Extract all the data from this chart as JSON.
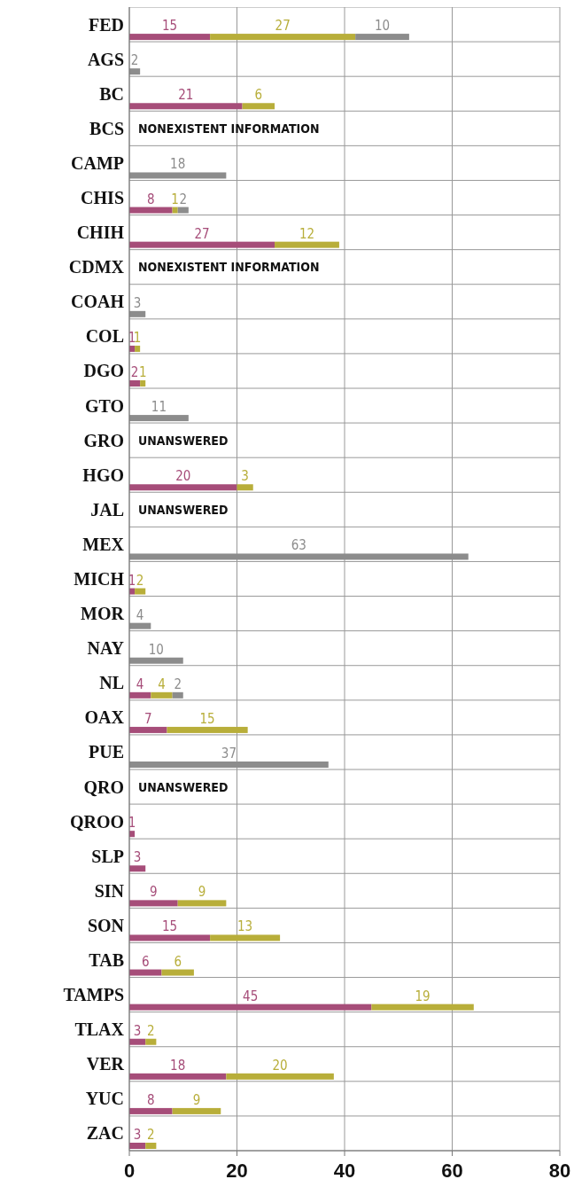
{
  "chart_data": {
    "type": "bar",
    "orientation": "horizontal",
    "stacked": true,
    "data_labels": true,
    "grid": true,
    "categories": [
      "FED",
      "AGS",
      "BC",
      "BCS",
      "CAMP",
      "CHIS",
      "CHIH",
      "CDMX",
      "COAH",
      "COL",
      "DGO",
      "GTO",
      "GRO",
      "HGO",
      "JAL",
      "MEX",
      "MICH",
      "MOR",
      "NAY",
      "NL",
      "OAX",
      "PUE",
      "QRO",
      "QROO",
      "SLP",
      "SIN",
      "SON",
      "TAB",
      "TAMPS",
      "TLAX",
      "VER",
      "YUC",
      "ZAC"
    ],
    "series": [
      {
        "color": "#a64d79",
        "values": [
          15,
          null,
          21,
          null,
          null,
          8,
          27,
          null,
          null,
          1,
          2,
          null,
          null,
          20,
          null,
          null,
          1,
          null,
          null,
          4,
          7,
          null,
          null,
          1,
          3,
          9,
          15,
          6,
          45,
          3,
          18,
          8,
          3
        ]
      },
      {
        "color": "#b8ae3a",
        "values": [
          27,
          null,
          6,
          null,
          null,
          1,
          12,
          null,
          null,
          1,
          1,
          null,
          null,
          3,
          null,
          null,
          2,
          null,
          null,
          4,
          15,
          null,
          null,
          null,
          null,
          9,
          13,
          6,
          19,
          2,
          20,
          9,
          2
        ]
      },
      {
        "color": "#8c8c8c",
        "values": [
          10,
          2,
          null,
          null,
          18,
          2,
          null,
          null,
          3,
          null,
          null,
          11,
          null,
          null,
          null,
          63,
          null,
          4,
          10,
          2,
          null,
          37,
          null,
          null,
          null,
          null,
          null,
          null,
          null,
          null,
          null,
          null,
          null
        ]
      }
    ],
    "xlim": [
      0,
      80
    ],
    "xticks": [
      0,
      20,
      40,
      60,
      80
    ],
    "annotations": [
      "NONEXISTENT INFORMATION",
      "NONEXISTENT INFORMATION",
      "UNANSWERED",
      "UNANSWERED",
      "UNANSWERED"
    ]
  }
}
